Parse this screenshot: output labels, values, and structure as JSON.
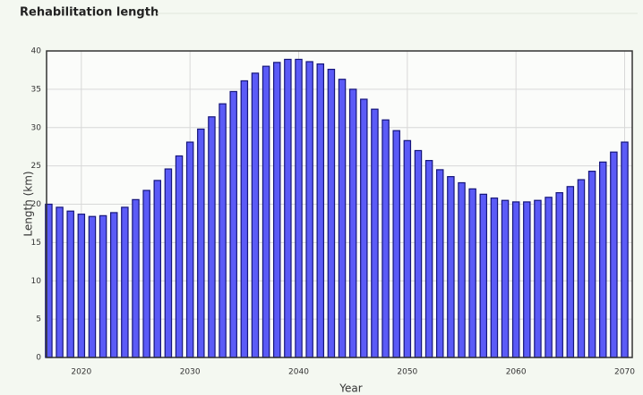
{
  "chart_data": {
    "type": "bar",
    "title": "Rehabilitation length",
    "x_label": "Year",
    "y_label": "Length (km)",
    "x": [
      2017,
      2018,
      2019,
      2020,
      2021,
      2022,
      2023,
      2024,
      2025,
      2026,
      2027,
      2028,
      2029,
      2030,
      2031,
      2032,
      2033,
      2034,
      2035,
      2036,
      2037,
      2038,
      2039,
      2040,
      2041,
      2042,
      2043,
      2044,
      2045,
      2046,
      2047,
      2048,
      2049,
      2050,
      2051,
      2052,
      2053,
      2054,
      2055,
      2056,
      2057,
      2058,
      2059,
      2060,
      2061,
      2062,
      2063,
      2064,
      2065,
      2066,
      2067,
      2068,
      2069,
      2070
    ],
    "values": [
      20.0,
      19.6,
      19.1,
      18.7,
      18.4,
      18.5,
      18.9,
      19.6,
      20.6,
      21.8,
      23.1,
      24.6,
      26.3,
      28.1,
      29.8,
      31.4,
      33.1,
      34.7,
      36.1,
      37.1,
      38.0,
      38.5,
      38.9,
      38.9,
      38.6,
      38.3,
      37.6,
      36.3,
      35.0,
      33.7,
      32.4,
      31.0,
      29.6,
      28.3,
      27.0,
      25.7,
      24.5,
      23.6,
      22.8,
      22.0,
      21.3,
      20.8,
      20.5,
      20.3,
      20.3,
      20.5,
      20.9,
      21.5,
      22.3,
      23.2,
      24.3,
      25.5,
      26.8,
      28.1
    ],
    "color": "#5b5bf7",
    "xlim": [
      2016.8,
      2070.7
    ],
    "xticks": [
      2020,
      2030,
      2040,
      2050,
      2060,
      2070
    ],
    "ylim": [
      0,
      40
    ],
    "yticks": [
      0,
      5,
      10,
      15,
      20,
      25,
      30,
      35,
      40
    ],
    "grid": true
  }
}
